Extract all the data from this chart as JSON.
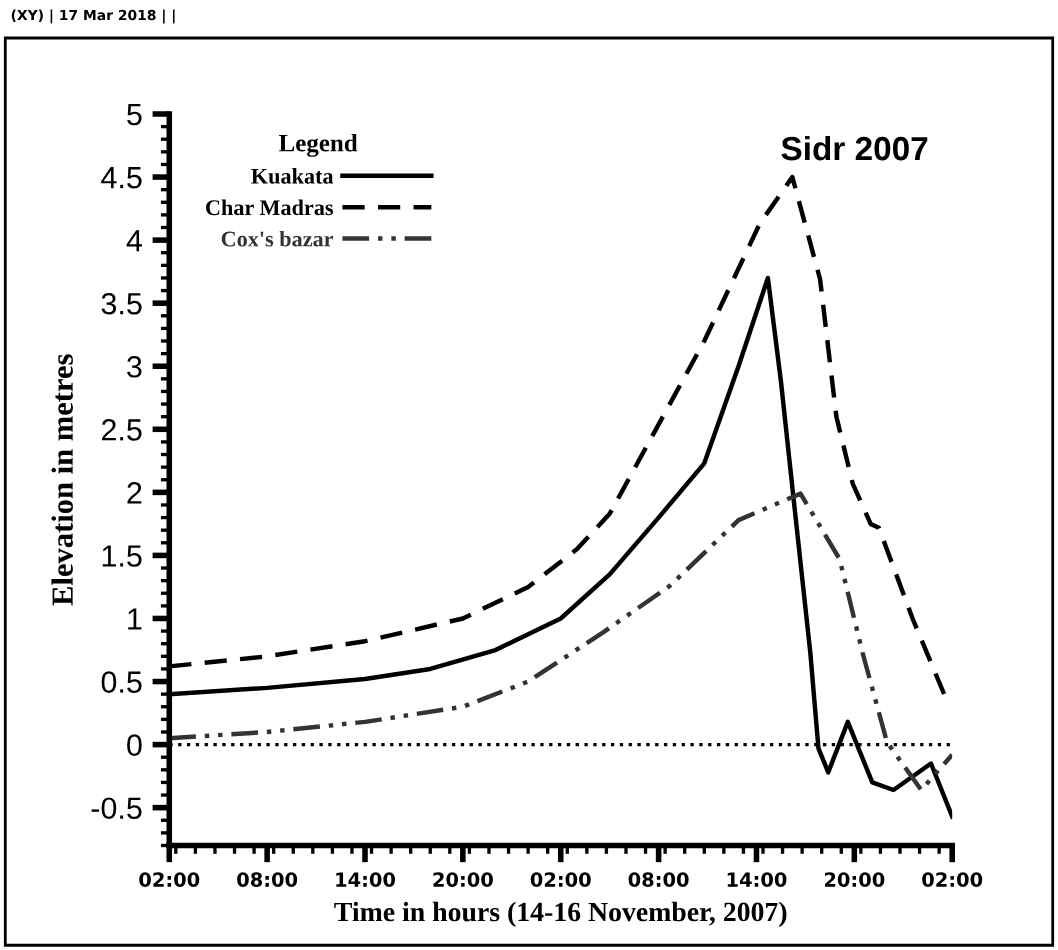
{
  "chart_data": {
    "type": "line",
    "title": "Sidr 2007",
    "xlabel": "Time in hours (14-16 November, 2007)",
    "ylabel": "Elevation in metres",
    "legend_title": "Legend",
    "annotations": [
      "(XY) | 17 Mar 2018 | |"
    ],
    "xlim": [
      "2007-11-14T02:00",
      "2007-11-16T02:00"
    ],
    "xticks": [
      {
        "value": "2007-11-14T02:00",
        "label": "02:00"
      },
      {
        "value": "2007-11-14T08:00",
        "label": "08:00"
      },
      {
        "value": "2007-11-14T14:00",
        "label": "14:00"
      },
      {
        "value": "2007-11-14T20:00",
        "label": "20:00"
      },
      {
        "value": "2007-11-15T02:00",
        "label": "02:00"
      },
      {
        "value": "2007-11-15T08:00",
        "label": "08:00"
      },
      {
        "value": "2007-11-15T14:00",
        "label": "14:00"
      },
      {
        "value": "2007-11-15T20:00",
        "label": "20:00"
      },
      {
        "value": "2007-11-16T02:00",
        "label": "02:00"
      }
    ],
    "ylim": [
      -0.8,
      5
    ],
    "yticks": [
      -0.5,
      0,
      0.5,
      1,
      1.5,
      2,
      2.5,
      3,
      3.5,
      4,
      4.5,
      5
    ],
    "grid": false,
    "legend": "top left",
    "ref_lines": [
      {
        "axis": "y",
        "value": 0,
        "color": "#000000",
        "line_style": "dotted"
      }
    ],
    "series": [
      {
        "name": "Kuakata",
        "color": "#000000",
        "line_style": "solid",
        "x": [
          "2007-11-14T02:00",
          "2007-11-14T08:00",
          "2007-11-14T14:00",
          "2007-11-14T18:00",
          "2007-11-14T22:00",
          "2007-11-15T02:00",
          "2007-11-15T05:00",
          "2007-11-15T08:00",
          "2007-11-15T10:48",
          "2007-11-15T12:54",
          "2007-11-15T14:42",
          "2007-11-15T15:30",
          "2007-11-15T16:24",
          "2007-11-15T17:18",
          "2007-11-15T17:48",
          "2007-11-15T18:24",
          "2007-11-15T19:36",
          "2007-11-15T21:06",
          "2007-11-15T22:24",
          "2007-11-16T00:42",
          "2007-11-16T02:00"
        ],
        "values": [
          0.4,
          0.45,
          0.52,
          0.6,
          0.75,
          1.0,
          1.35,
          1.8,
          2.23,
          3.0,
          3.7,
          2.88,
          1.8,
          0.73,
          -0.03,
          -0.22,
          0.18,
          -0.3,
          -0.36,
          -0.15,
          -0.57
        ]
      },
      {
        "name": "Char Madras",
        "color": "#000000",
        "line_style": "dashed",
        "x": [
          "2007-11-14T02:00",
          "2007-11-14T08:00",
          "2007-11-14T14:00",
          "2007-11-14T20:00",
          "2007-11-15T00:00",
          "2007-11-15T03:00",
          "2007-11-15T05:00",
          "2007-11-15T10:48",
          "2007-11-15T14:12",
          "2007-11-15T16:12",
          "2007-11-15T17:54",
          "2007-11-15T18:54",
          "2007-11-15T19:54",
          "2007-11-15T21:00",
          "2007-11-15T21:30",
          "2007-11-15T23:36",
          "2007-11-16T01:42"
        ],
        "values": [
          0.62,
          0.7,
          0.82,
          1.0,
          1.25,
          1.55,
          1.83,
          3.2,
          4.13,
          4.5,
          3.69,
          2.6,
          2.07,
          1.75,
          1.72,
          0.99,
          0.34
        ]
      },
      {
        "name": "Cox's bazar",
        "color": "#333333",
        "line_style": "dotted",
        "x": [
          "2007-11-14T02:00",
          "2007-11-14T08:00",
          "2007-11-14T14:00",
          "2007-11-14T20:00",
          "2007-11-15T00:00",
          "2007-11-15T04:36",
          "2007-11-15T08:42",
          "2007-11-15T12:54",
          "2007-11-15T16:42",
          "2007-11-15T19:06",
          "2007-11-15T20:30",
          "2007-11-15T22:00",
          "2007-11-16T00:06",
          "2007-11-16T02:00"
        ],
        "values": [
          0.05,
          0.1,
          0.18,
          0.3,
          0.5,
          0.89,
          1.26,
          1.78,
          1.99,
          1.47,
          0.73,
          0.02,
          -0.36,
          -0.08
        ]
      }
    ]
  }
}
